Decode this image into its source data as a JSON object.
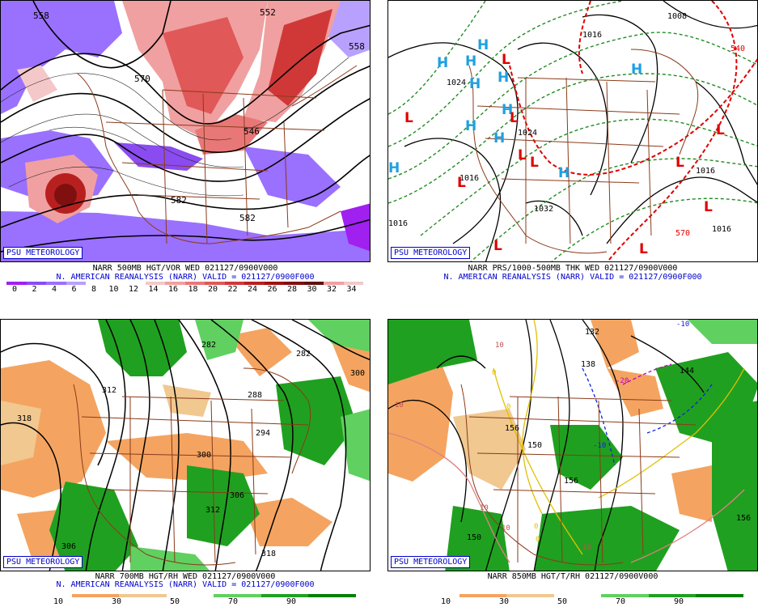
{
  "credit_label": "PSU METEOROLOGY",
  "panels": [
    {
      "id": "vort",
      "line1": "NARR 500MB HGT/VOR WED 021127/0900V000",
      "line2": "N. AMERICAN REANALYSIS (NARR) VALID = 021127/0900F000",
      "scale_labels": [
        "0",
        "2",
        "4",
        "6",
        "8",
        "10",
        "12",
        "14",
        "16",
        "18",
        "20",
        "22",
        "24",
        "26",
        "28",
        "30",
        "32",
        "34"
      ],
      "scale_colors": [
        "#a020f0",
        "#8a4cf0",
        "#9a70ff",
        "#b8a0ff",
        "#ffffff",
        "#ffffff",
        "#ffffff",
        "#f4c8c8",
        "#f0a0a0",
        "#e87878",
        "#e05858",
        "#d03838",
        "#b82020",
        "#a01010",
        "#801010",
        "#601010",
        "#f0a0a0",
        "#f4c8c8"
      ],
      "map_labels": [
        "558",
        "570",
        "582",
        "546",
        "582",
        "558",
        "552"
      ]
    },
    {
      "id": "pres",
      "line1": "NARR PRS/1000-500MB THK WED 021127/0900V000",
      "line2": "N. AMERICAN REANALYSIS (NARR) VALID = 021127/0900F000",
      "map_labels": [
        "1024",
        "1016",
        "1032",
        "1024",
        "1016",
        "1016",
        "1016",
        "1008",
        "1016",
        "570",
        "540"
      ],
      "high_letter": "H",
      "low_letter": "L"
    },
    {
      "id": "h700",
      "line1": "NARR 700MB HGT/RH WED 021127/0900V000",
      "line2": "N. AMERICAN REANALYSIS (NARR) VALID = 021127/0900F000",
      "scale_labels": [
        "10",
        "30",
        "50",
        "70",
        "90"
      ],
      "map_labels": [
        "282",
        "288",
        "294",
        "300",
        "306",
        "312",
        "318",
        "318",
        "306",
        "312",
        "300",
        "282"
      ]
    },
    {
      "id": "h850",
      "line1": "NARR 850MB HGT/T/RH 021127/0900V000",
      "scale_labels": [
        "10",
        "30",
        "50",
        "70",
        "90"
      ],
      "map_labels": [
        "132",
        "138",
        "144",
        "150",
        "156",
        "150",
        "156",
        "156"
      ],
      "temp_labels": [
        "-10",
        "-20",
        "-10",
        "0",
        "0",
        "0",
        "10",
        "10",
        "10",
        "10",
        "10",
        "0"
      ]
    }
  ],
  "rh_scale_colors": [
    "#ffffff",
    "#f4a460",
    "#f0c890",
    "#ffffff",
    "#60d060",
    "#20a020",
    "#008000"
  ]
}
